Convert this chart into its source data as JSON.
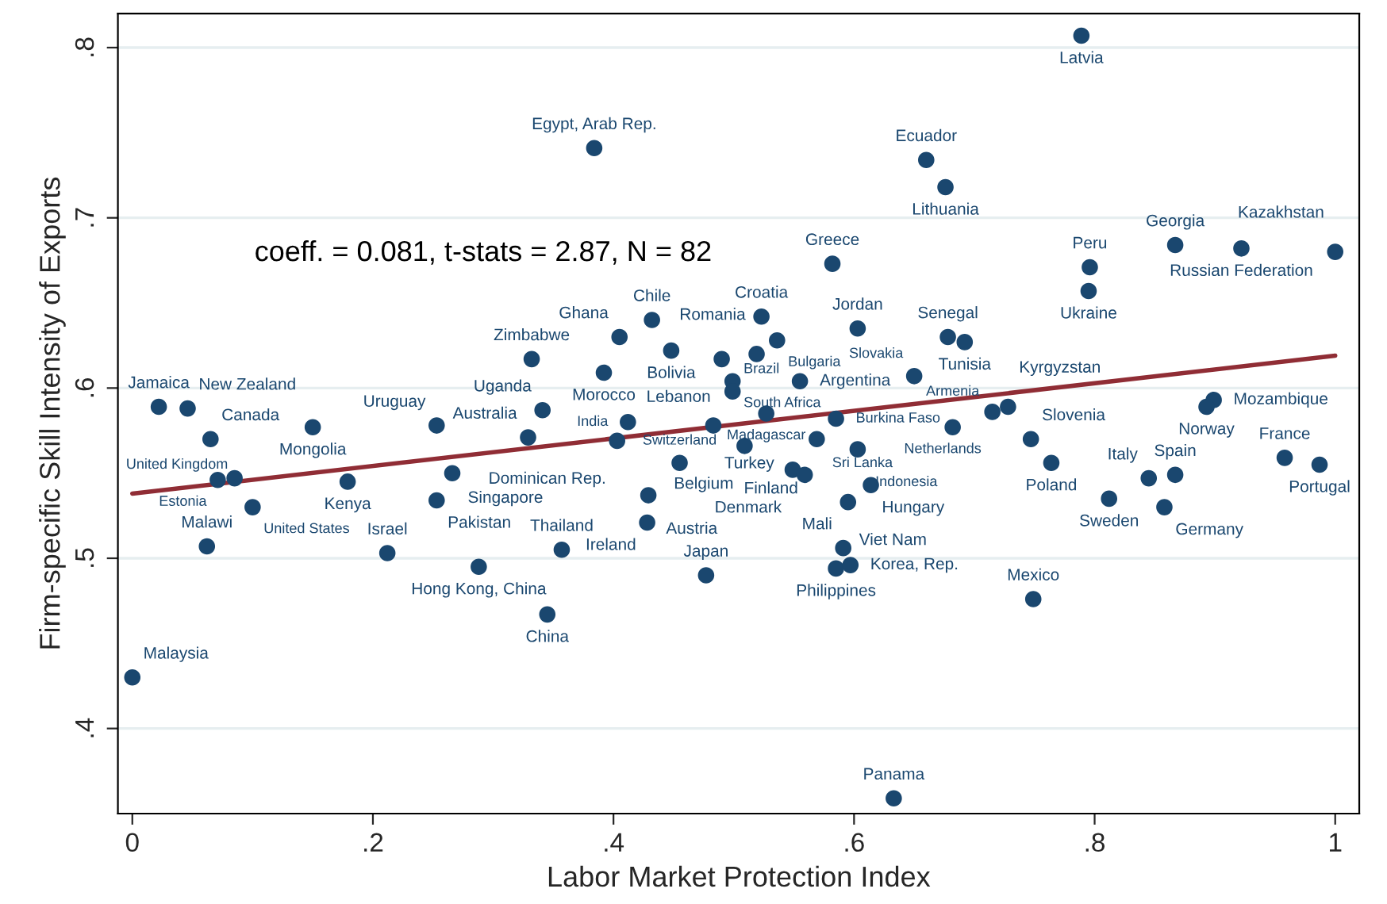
{
  "chart_data": {
    "type": "scatter",
    "xlabel": "Labor Market Protection Index",
    "ylabel": "Firm-specific Skill Intensity of Exports",
    "xlim": [
      -0.012,
      1.02
    ],
    "ylim": [
      0.35,
      0.82
    ],
    "xticks": [
      {
        "value": 0,
        "label": "0"
      },
      {
        "value": 0.2,
        "label": ".2"
      },
      {
        "value": 0.4,
        "label": ".4"
      },
      {
        "value": 0.6,
        "label": ".6"
      },
      {
        "value": 0.8,
        "label": ".8"
      },
      {
        "value": 1,
        "label": "1"
      }
    ],
    "yticks": [
      {
        "value": 0.4,
        "label": ".4"
      },
      {
        "value": 0.5,
        "label": ".5"
      },
      {
        "value": 0.6,
        "label": ".6"
      },
      {
        "value": 0.7,
        "label": ".7"
      },
      {
        "value": 0.8,
        "label": ".8"
      }
    ],
    "grid": "y",
    "series": [
      {
        "marker": "circle",
        "color": "#1a476f",
        "x": [
          0.789,
          0.384,
          0.66,
          0.676,
          0.582,
          0.796,
          0.795,
          0.867,
          0.922,
          1.0,
          0.432,
          0.523,
          0.603,
          0.678,
          0.692,
          0.405,
          0.536,
          0.448,
          0.49,
          0.519,
          0.332,
          0.392,
          0.499,
          0.499,
          0.555,
          0.65,
          0.341,
          0.412,
          0.329,
          0.403,
          0.483,
          0.527,
          0.585,
          0.569,
          0.603,
          0.509,
          0.455,
          0.549,
          0.559,
          0.614,
          0.595,
          0.429,
          0.428,
          0.357,
          0.591,
          0.585,
          0.597,
          0.477,
          0.288,
          0.212,
          0.062,
          0.345,
          0.0,
          0.633,
          0.749,
          0.022,
          0.046,
          0.065,
          0.15,
          0.253,
          0.071,
          0.085,
          0.179,
          0.1,
          0.266,
          0.253,
          0.728,
          0.715,
          0.682,
          0.747,
          0.764,
          0.845,
          0.867,
          0.812,
          0.858,
          0.958,
          0.987,
          0.899,
          0.893
        ],
        "values": [
          0.807,
          0.741,
          0.734,
          0.718,
          0.673,
          0.671,
          0.657,
          0.684,
          0.682,
          0.68,
          0.64,
          0.642,
          0.635,
          0.63,
          0.627,
          0.63,
          0.628,
          0.622,
          0.617,
          0.62,
          0.617,
          0.609,
          0.604,
          0.598,
          0.604,
          0.607,
          0.587,
          0.58,
          0.571,
          0.569,
          0.578,
          0.585,
          0.582,
          0.57,
          0.564,
          0.566,
          0.556,
          0.552,
          0.549,
          0.543,
          0.533,
          0.537,
          0.521,
          0.505,
          0.506,
          0.494,
          0.496,
          0.49,
          0.495,
          0.503,
          0.507,
          0.467,
          0.43,
          0.359,
          0.476,
          0.589,
          0.588,
          0.57,
          0.577,
          0.578,
          0.546,
          0.547,
          0.545,
          0.53,
          0.55,
          0.534,
          0.589,
          0.586,
          0.577,
          0.57,
          0.556,
          0.547,
          0.549,
          0.535,
          0.53,
          0.559,
          0.555,
          0.593,
          0.589
        ]
      },
      {
        "type": "line",
        "color": "#902d35",
        "x": [
          0,
          1
        ],
        "values": [
          0.538,
          0.619
        ]
      }
    ],
    "annotations": [
      "coeff. = 0.081, t-stats = 2.87, N = 82",
      {
        "text": "Latvia",
        "x": 0.789,
        "y": 0.807
      },
      {
        "text": "Egypt, Arab Rep.",
        "x": 0.384,
        "y": 0.741
      },
      {
        "text": "Ecuador",
        "x": 0.66,
        "y": 0.734
      },
      {
        "text": "Lithuania",
        "x": 0.676,
        "y": 0.718
      },
      {
        "text": "Greece",
        "x": 0.582,
        "y": 0.673
      },
      {
        "text": "Peru",
        "x": 0.796,
        "y": 0.671
      },
      {
        "text": "Ukraine",
        "x": 0.795,
        "y": 0.657
      },
      {
        "text": "Georgia",
        "x": 0.867,
        "y": 0.684
      },
      {
        "text": "Russian Federation",
        "x": 0.922,
        "y": 0.682
      },
      {
        "text": "Kazakhstan",
        "x": 1.0,
        "y": 0.68
      },
      {
        "text": "Chile",
        "x": 0.432,
        "y": 0.64
      },
      {
        "text": "Croatia",
        "x": 0.523,
        "y": 0.642
      },
      {
        "text": "Jordan",
        "x": 0.603,
        "y": 0.635
      },
      {
        "text": "Senegal",
        "x": 0.678,
        "y": 0.63
      },
      {
        "text": "Tunisia",
        "x": 0.692,
        "y": 0.627
      },
      {
        "text": "Ghana",
        "x": 0.405,
        "y": 0.63
      },
      {
        "text": "Bulgaria",
        "x": 0.536,
        "y": 0.628
      },
      {
        "text": "Bolivia",
        "x": 0.448,
        "y": 0.622
      },
      {
        "text": "Lebanon",
        "x": 0.49,
        "y": 0.617
      },
      {
        "text": "Romania",
        "x": 0.519,
        "y": 0.62
      },
      {
        "text": "Zimbabwe",
        "x": 0.332,
        "y": 0.617
      },
      {
        "text": "Morocco",
        "x": 0.392,
        "y": 0.609
      },
      {
        "text": "South Africa",
        "x": 0.499,
        "y": 0.604
      },
      {
        "text": "Brazil",
        "x": 0.499,
        "y": 0.598
      },
      {
        "text": "Argentina",
        "x": 0.555,
        "y": 0.604
      },
      {
        "text": "Slovakia",
        "x": 0.65,
        "y": 0.607
      },
      {
        "text": "Uganda",
        "x": 0.341,
        "y": 0.587
      },
      {
        "text": "India",
        "x": 0.412,
        "y": 0.58
      },
      {
        "text": "Australia",
        "x": 0.329,
        "y": 0.571
      },
      {
        "text": "Dominican Rep.",
        "x": 0.403,
        "y": 0.569
      },
      {
        "text": "Turkey",
        "x": 0.483,
        "y": 0.578
      },
      {
        "text": "Madagascar",
        "x": 0.527,
        "y": 0.585
      },
      {
        "text": "Burkina Faso",
        "x": 0.585,
        "y": 0.582
      },
      {
        "text": "Sri Lanka",
        "x": 0.569,
        "y": 0.57
      },
      {
        "text": "Indonesia",
        "x": 0.603,
        "y": 0.564
      },
      {
        "text": "Belgium",
        "x": 0.509,
        "y": 0.566
      },
      {
        "text": "Switzerland",
        "x": 0.455,
        "y": 0.556
      },
      {
        "text": "Denmark",
        "x": 0.549,
        "y": 0.552
      },
      {
        "text": "Finland",
        "x": 0.559,
        "y": 0.549
      },
      {
        "text": "Hungary",
        "x": 0.614,
        "y": 0.543
      },
      {
        "text": "Viet Nam",
        "x": 0.595,
        "y": 0.533
      },
      {
        "text": "Austria",
        "x": 0.429,
        "y": 0.537
      },
      {
        "text": "Ireland",
        "x": 0.428,
        "y": 0.521
      },
      {
        "text": "Thailand",
        "x": 0.357,
        "y": 0.505
      },
      {
        "text": "Mali",
        "x": 0.591,
        "y": 0.506
      },
      {
        "text": "Philippines",
        "x": 0.585,
        "y": 0.494
      },
      {
        "text": "Korea, Rep.",
        "x": 0.597,
        "y": 0.496
      },
      {
        "text": "Japan",
        "x": 0.477,
        "y": 0.49
      },
      {
        "text": "Hong Kong, China",
        "x": 0.288,
        "y": 0.495
      },
      {
        "text": "Israel",
        "x": 0.212,
        "y": 0.503
      },
      {
        "text": "Malawi",
        "x": 0.062,
        "y": 0.507
      },
      {
        "text": "China",
        "x": 0.345,
        "y": 0.467
      },
      {
        "text": "Malaysia",
        "x": 0.0,
        "y": 0.43
      },
      {
        "text": "Panama",
        "x": 0.633,
        "y": 0.359
      },
      {
        "text": "Mexico",
        "x": 0.749,
        "y": 0.476
      },
      {
        "text": "Jamaica",
        "x": 0.022,
        "y": 0.589
      },
      {
        "text": "New Zealand",
        "x": 0.046,
        "y": 0.588
      },
      {
        "text": "Canada",
        "x": 0.065,
        "y": 0.57
      },
      {
        "text": "Mongolia",
        "x": 0.15,
        "y": 0.577
      },
      {
        "text": "Uruguay",
        "x": 0.253,
        "y": 0.578
      },
      {
        "text": "Estonia",
        "x": 0.071,
        "y": 0.546
      },
      {
        "text": "United Kingdom",
        "x": 0.085,
        "y": 0.547
      },
      {
        "text": "Kenya",
        "x": 0.179,
        "y": 0.545
      },
      {
        "text": "United States",
        "x": 0.1,
        "y": 0.53
      },
      {
        "text": "Singapore",
        "x": 0.266,
        "y": 0.55
      },
      {
        "text": "Pakistan",
        "x": 0.253,
        "y": 0.534
      },
      {
        "text": "Kyrgyzstan",
        "x": 0.728,
        "y": 0.589
      },
      {
        "text": "Netherlands",
        "x": 0.715,
        "y": 0.586
      },
      {
        "text": "Armenia",
        "x": 0.682,
        "y": 0.577
      },
      {
        "text": "Slovenia",
        "x": 0.747,
        "y": 0.57
      },
      {
        "text": "Poland",
        "x": 0.764,
        "y": 0.556
      },
      {
        "text": "Italy",
        "x": 0.845,
        "y": 0.547
      },
      {
        "text": "Spain",
        "x": 0.867,
        "y": 0.549
      },
      {
        "text": "Sweden",
        "x": 0.812,
        "y": 0.535
      },
      {
        "text": "Germany",
        "x": 0.858,
        "y": 0.53
      },
      {
        "text": "France",
        "x": 0.958,
        "y": 0.559
      },
      {
        "text": "Portugal",
        "x": 0.987,
        "y": 0.555
      },
      {
        "text": "Mozambique",
        "x": 0.899,
        "y": 0.593
      },
      {
        "text": "Norway",
        "x": 0.893,
        "y": 0.589
      }
    ]
  }
}
